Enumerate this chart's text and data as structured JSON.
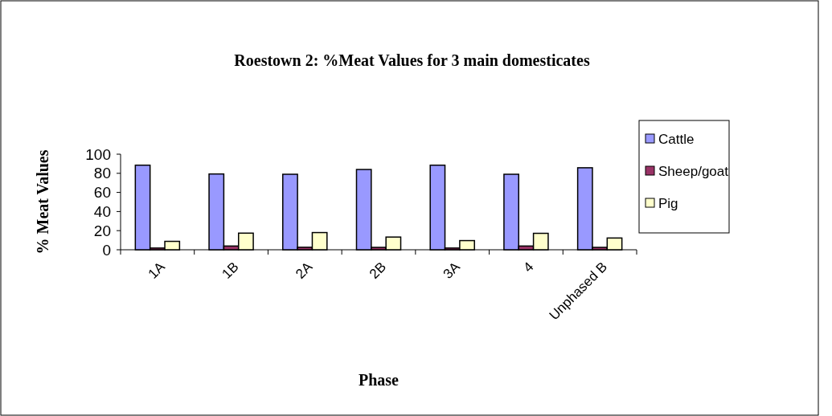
{
  "chart_data": {
    "type": "bar",
    "title": "Roestown 2: %Meat Values for 3 main domesticates",
    "xlabel": "Phase",
    "ylabel": "% Meat Values",
    "categories": [
      "1A",
      "1B",
      "2A",
      "2B",
      "3A",
      "4",
      "Unphased B"
    ],
    "series": [
      {
        "name": "Cattle",
        "color": "#9999ff",
        "values": [
          88.5,
          79.3,
          79,
          84,
          88.5,
          79,
          85.8
        ]
      },
      {
        "name": "Sheep/goat",
        "color": "#993366",
        "values": [
          1.8,
          3.9,
          2.6,
          2.5,
          1.8,
          3.9,
          2.5
        ]
      },
      {
        "name": "Pig",
        "color": "#ffffcc",
        "values": [
          8.8,
          17.4,
          18,
          13.3,
          9.6,
          17.2,
          12.3
        ]
      }
    ],
    "ylim": [
      0,
      100
    ],
    "yticks": [
      0,
      20,
      40,
      60,
      80,
      100
    ],
    "grid": false,
    "legend": "right"
  }
}
